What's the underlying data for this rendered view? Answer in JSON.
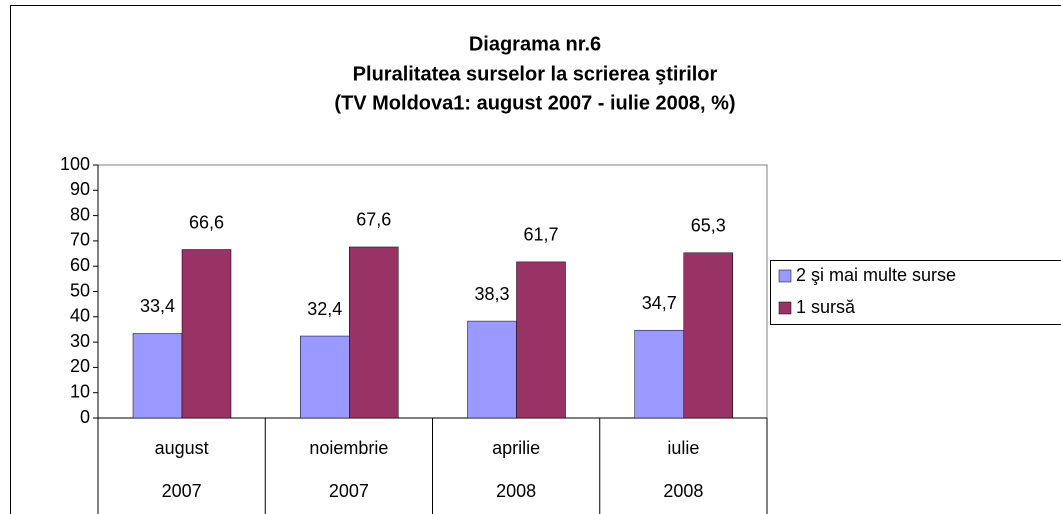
{
  "chart_data": {
    "type": "bar",
    "title": "Diagrama nr.6",
    "subtitle": [
      "Pluralitatea surselor la scrierea ştirilor",
      "(TV Moldova1: august 2007 - iulie 2008, %)"
    ],
    "categories": [
      "august",
      "noiembrie",
      "aprilie",
      "iulie"
    ],
    "category_years": [
      "2007",
      "2007",
      "2008",
      "2008"
    ],
    "series": [
      {
        "name": "2 şi mai multe surse",
        "color": "#9999ff",
        "values": [
          33.4,
          32.4,
          38.3,
          34.7
        ],
        "value_labels": [
          "33,4",
          "32,4",
          "38,3",
          "34,7"
        ]
      },
      {
        "name": "1 sursă",
        "color": "#993366",
        "values": [
          66.6,
          67.6,
          61.7,
          65.3
        ],
        "value_labels": [
          "66,6",
          "67,6",
          "61,7",
          "65,3"
        ]
      }
    ],
    "ylim": [
      0,
      100
    ],
    "yticks": [
      0,
      10,
      20,
      30,
      40,
      50,
      60,
      70,
      80,
      90,
      100
    ],
    "legend": "right"
  }
}
